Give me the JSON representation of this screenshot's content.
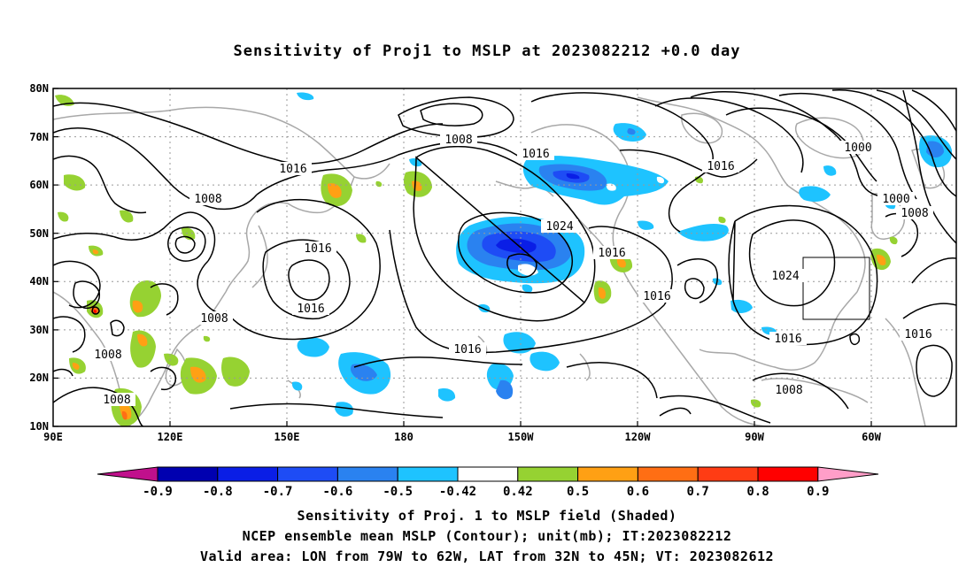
{
  "title": "Sensitivity of Proj1 to MSLP at 2023082212 +0.0 day",
  "lat_labels": [
    "80N",
    "70N",
    "60N",
    "50N",
    "40N",
    "30N",
    "20N",
    "10N"
  ],
  "lon_labels": [
    "90E",
    "120E",
    "150E",
    "180",
    "150W",
    "120W",
    "90W",
    "60W"
  ],
  "contour_labels": [
    {
      "text": "1008",
      "id": "c1"
    },
    {
      "text": "1016",
      "id": "c2"
    },
    {
      "text": "1016",
      "id": "c3"
    },
    {
      "text": "1008",
      "id": "c4"
    },
    {
      "text": "1016",
      "id": "c5"
    },
    {
      "text": "1024",
      "id": "c6"
    },
    {
      "text": "1016",
      "id": "c7"
    },
    {
      "text": "1000",
      "id": "c8"
    },
    {
      "text": "1000",
      "id": "c9"
    },
    {
      "text": "1008",
      "id": "c10"
    },
    {
      "text": "1016",
      "id": "c11"
    },
    {
      "text": "1016",
      "id": "c12"
    },
    {
      "text": "1008",
      "id": "c13"
    },
    {
      "text": "1008",
      "id": "c14"
    },
    {
      "text": "1008",
      "id": "c15"
    },
    {
      "text": "1016",
      "id": "c16"
    },
    {
      "text": "1016",
      "id": "c17"
    },
    {
      "text": "1024",
      "id": "c18"
    },
    {
      "text": "1016",
      "id": "c19"
    },
    {
      "text": "1016",
      "id": "c20"
    },
    {
      "text": "1008",
      "id": "c21"
    }
  ],
  "colorbar": {
    "labels": [
      "-0.9",
      "-0.8",
      "-0.7",
      "-0.6",
      "-0.5",
      "-0.42",
      "0.42",
      "0.5",
      "0.6",
      "0.7",
      "0.8",
      "0.9"
    ],
    "colors": [
      "#c0108c",
      "#0000b0",
      "#0a1ee6",
      "#1e4cf5",
      "#2a82f0",
      "#1ec3ff",
      "#ffffff",
      "#96d232",
      "#ffa014",
      "#ff6e14",
      "#ff3c14",
      "#ff0000",
      "#ff9ec8"
    ]
  },
  "captions": [
    "Sensitivity of Proj. 1 to MSLP field (Shaded)",
    "NCEP ensemble mean MSLP (Contour); unit(mb); IT:2023082212",
    "Valid area: LON from 79W to 62W, LAT from 32N to 45N; VT: 2023082612"
  ]
}
